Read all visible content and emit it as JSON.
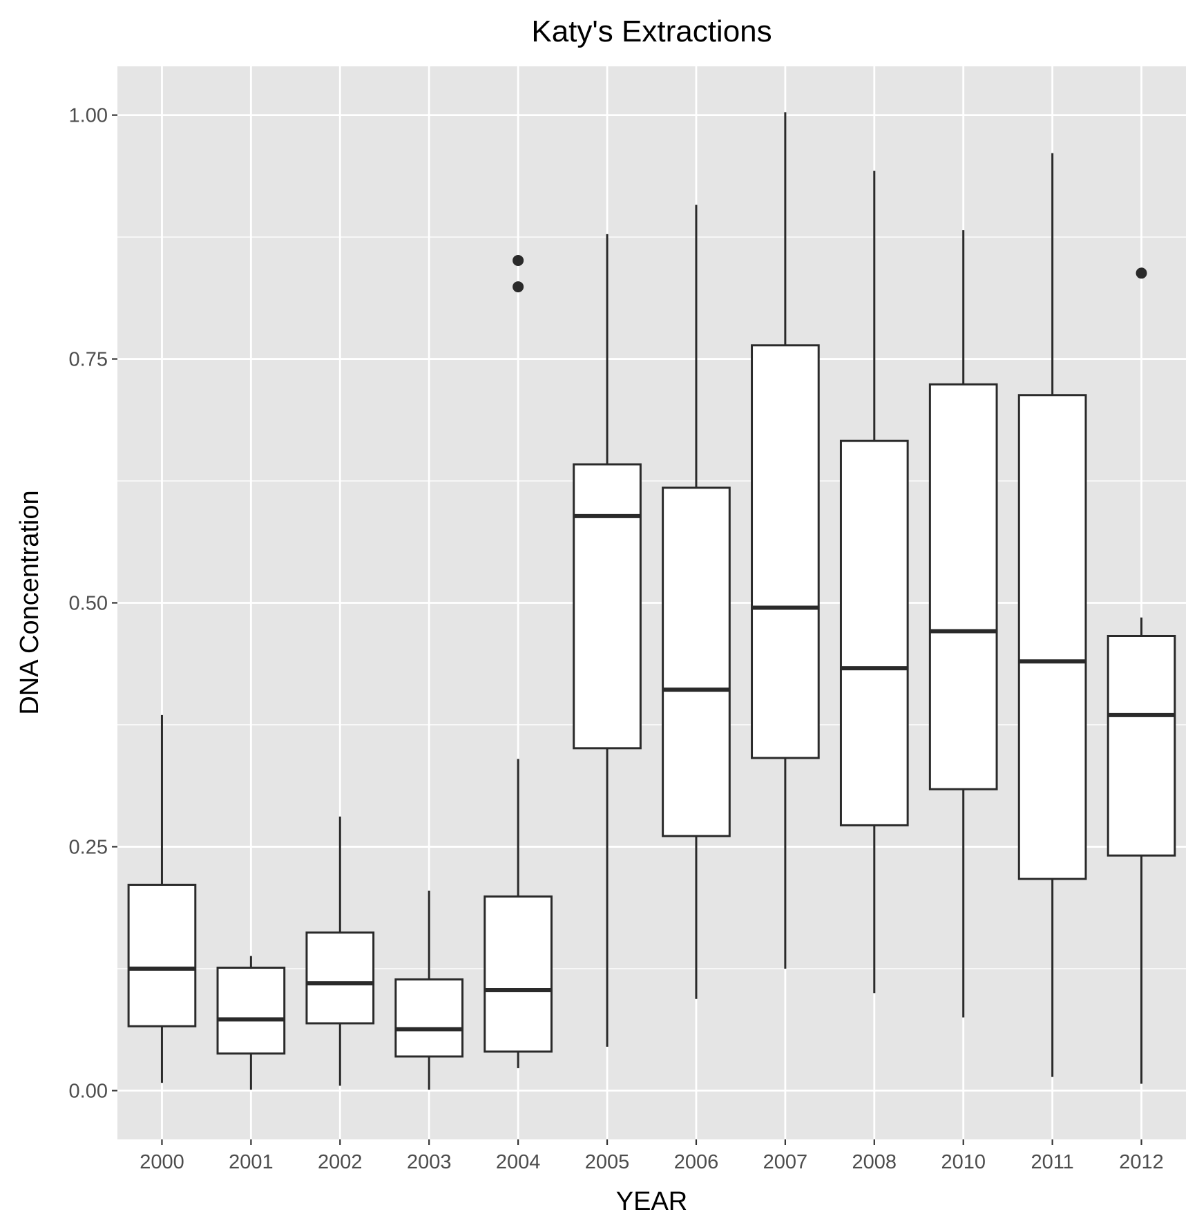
{
  "chart_data": {
    "type": "boxplot",
    "title": "Katy's Extractions",
    "xlabel": "YEAR",
    "ylabel": "DNA Concentration",
    "ylim": [
      -0.05,
      1.05
    ],
    "yticks": [
      0.0,
      0.25,
      0.5,
      0.75,
      1.0
    ],
    "ytick_labels": [
      "0.00",
      "0.25",
      "0.50",
      "0.75",
      "1.00"
    ],
    "grid": true,
    "categories": [
      "2000",
      "2001",
      "2002",
      "2003",
      "2004",
      "2005",
      "2006",
      "2007",
      "2008",
      "2010",
      "2011",
      "2012"
    ],
    "boxes": [
      {
        "category": "2000",
        "whisker_low": 0.008,
        "q1": 0.066,
        "median": 0.125,
        "q3": 0.211,
        "whisker_high": 0.385,
        "outliers": []
      },
      {
        "category": "2001",
        "whisker_low": 0.001,
        "q1": 0.038,
        "median": 0.073,
        "q3": 0.126,
        "whisker_high": 0.138,
        "outliers": []
      },
      {
        "category": "2002",
        "whisker_low": 0.005,
        "q1": 0.069,
        "median": 0.11,
        "q3": 0.162,
        "whisker_high": 0.281,
        "outliers": []
      },
      {
        "category": "2003",
        "whisker_low": 0.001,
        "q1": 0.035,
        "median": 0.063,
        "q3": 0.114,
        "whisker_high": 0.205,
        "outliers": []
      },
      {
        "category": "2004",
        "whisker_low": 0.023,
        "q1": 0.04,
        "median": 0.103,
        "q3": 0.199,
        "whisker_high": 0.34,
        "outliers": [
          0.851,
          0.824
        ]
      },
      {
        "category": "2005",
        "whisker_low": 0.045,
        "q1": 0.351,
        "median": 0.589,
        "q3": 0.642,
        "whisker_high": 0.878,
        "outliers": []
      },
      {
        "category": "2006",
        "whisker_low": 0.094,
        "q1": 0.261,
        "median": 0.411,
        "q3": 0.618,
        "whisker_high": 0.908,
        "outliers": []
      },
      {
        "category": "2007",
        "whisker_low": 0.125,
        "q1": 0.341,
        "median": 0.495,
        "q3": 0.764,
        "whisker_high": 1.003,
        "outliers": []
      },
      {
        "category": "2008",
        "whisker_low": 0.1,
        "q1": 0.272,
        "median": 0.433,
        "q3": 0.666,
        "whisker_high": 0.943,
        "outliers": []
      },
      {
        "category": "2010",
        "whisker_low": 0.075,
        "q1": 0.309,
        "median": 0.471,
        "q3": 0.724,
        "whisker_high": 0.882,
        "outliers": []
      },
      {
        "category": "2011",
        "whisker_low": 0.014,
        "q1": 0.217,
        "median": 0.44,
        "q3": 0.713,
        "whisker_high": 0.961,
        "outliers": []
      },
      {
        "category": "2012",
        "whisker_low": 0.007,
        "q1": 0.241,
        "median": 0.385,
        "q3": 0.466,
        "whisker_high": 0.485,
        "outliers": [
          0.838
        ]
      }
    ]
  },
  "colors": {
    "panel_background": "#e5e5e5",
    "grid": "#ffffff",
    "box_fill": "#ffffff",
    "box_stroke": "#2a2a2a",
    "tick_text": "#4d4d4d"
  }
}
